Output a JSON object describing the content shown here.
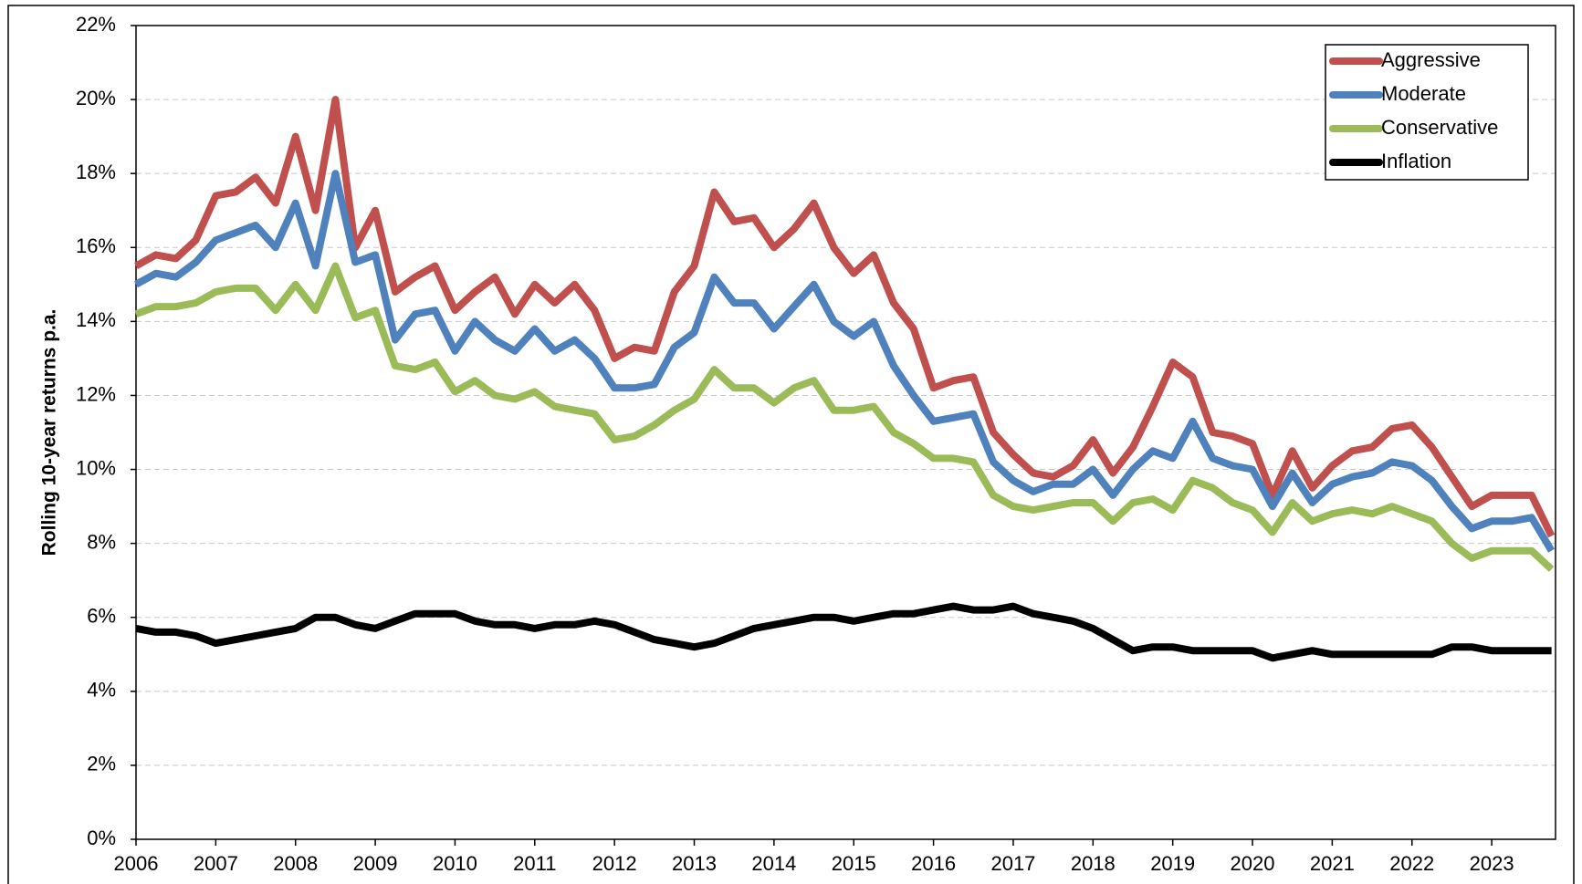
{
  "chart_data": {
    "type": "line",
    "y_label": "Rolling 10-year returns p.a.",
    "x": [
      2006,
      2006.25,
      2006.5,
      2006.75,
      2007,
      2007.25,
      2007.5,
      2007.75,
      2008,
      2008.25,
      2008.5,
      2008.75,
      2009,
      2009.25,
      2009.5,
      2009.75,
      2010,
      2010.25,
      2010.5,
      2010.75,
      2011,
      2011.25,
      2011.5,
      2011.75,
      2012,
      2012.25,
      2012.5,
      2012.75,
      2013,
      2013.25,
      2013.5,
      2013.75,
      2014,
      2014.25,
      2014.5,
      2014.75,
      2015,
      2015.25,
      2015.5,
      2015.75,
      2016,
      2016.25,
      2016.5,
      2016.75,
      2017,
      2017.25,
      2017.5,
      2017.75,
      2018,
      2018.25,
      2018.5,
      2018.75,
      2019,
      2019.25,
      2019.5,
      2019.75,
      2020,
      2020.25,
      2020.5,
      2020.75,
      2021,
      2021.25,
      2021.5,
      2021.75,
      2022,
      2022.25,
      2022.5,
      2022.75,
      2023,
      2023.25,
      2023.5,
      2023.75
    ],
    "series": [
      {
        "name": "Aggressive",
        "color": "#c0504d",
        "values": [
          15.5,
          15.8,
          15.7,
          16.2,
          17.4,
          17.5,
          17.9,
          17.2,
          19.0,
          17.0,
          20.0,
          16.0,
          17.0,
          14.8,
          15.2,
          15.5,
          14.3,
          14.8,
          15.2,
          14.2,
          15.0,
          14.5,
          15.0,
          14.3,
          13.0,
          13.3,
          13.2,
          14.8,
          15.5,
          17.5,
          16.7,
          16.8,
          16.0,
          16.5,
          17.2,
          16.0,
          15.3,
          15.8,
          14.5,
          13.8,
          12.2,
          12.4,
          12.5,
          11.0,
          10.4,
          9.9,
          9.8,
          10.1,
          10.8,
          9.9,
          10.6,
          11.7,
          12.9,
          12.5,
          11.0,
          10.9,
          10.7,
          9.3,
          10.5,
          9.5,
          10.1,
          10.5,
          10.6,
          11.1,
          11.2,
          10.6,
          9.8,
          9.0,
          9.3,
          9.3,
          9.3,
          8.2
        ]
      },
      {
        "name": "Moderate",
        "color": "#4f81bd",
        "values": [
          15.0,
          15.3,
          15.2,
          15.6,
          16.2,
          16.4,
          16.6,
          16.0,
          17.2,
          15.5,
          18.0,
          15.6,
          15.8,
          13.5,
          14.2,
          14.3,
          13.2,
          14.0,
          13.5,
          13.2,
          13.8,
          13.2,
          13.5,
          13.0,
          12.2,
          12.2,
          12.3,
          13.3,
          13.7,
          15.2,
          14.5,
          14.5,
          13.8,
          14.4,
          15.0,
          14.0,
          13.6,
          14.0,
          12.8,
          12.0,
          11.3,
          11.4,
          11.5,
          10.2,
          9.7,
          9.4,
          9.6,
          9.6,
          10.0,
          9.3,
          10.0,
          10.5,
          10.3,
          11.3,
          10.3,
          10.1,
          10.0,
          9.0,
          9.9,
          9.1,
          9.6,
          9.8,
          9.9,
          10.2,
          10.1,
          9.7,
          9.0,
          8.4,
          8.6,
          8.6,
          8.7,
          7.8
        ]
      },
      {
        "name": "Conservative",
        "color": "#9bbb59",
        "values": [
          14.2,
          14.4,
          14.4,
          14.5,
          14.8,
          14.9,
          14.9,
          14.3,
          15.0,
          14.3,
          15.5,
          14.1,
          14.3,
          12.8,
          12.7,
          12.9,
          12.1,
          12.4,
          12.0,
          11.9,
          12.1,
          11.7,
          11.6,
          11.5,
          10.8,
          10.9,
          11.2,
          11.6,
          11.9,
          12.7,
          12.2,
          12.2,
          11.8,
          12.2,
          12.4,
          11.6,
          11.6,
          11.7,
          11.0,
          10.7,
          10.3,
          10.3,
          10.2,
          9.3,
          9.0,
          8.9,
          9.0,
          9.1,
          9.1,
          8.6,
          9.1,
          9.2,
          8.9,
          9.7,
          9.5,
          9.1,
          8.9,
          8.3,
          9.1,
          8.6,
          8.8,
          8.9,
          8.8,
          9.0,
          8.8,
          8.6,
          8.0,
          7.6,
          7.8,
          7.8,
          7.8,
          7.3
        ]
      },
      {
        "name": "Inflation",
        "color": "#000000",
        "values": [
          5.7,
          5.6,
          5.6,
          5.5,
          5.3,
          5.4,
          5.5,
          5.6,
          5.7,
          6.0,
          6.0,
          5.8,
          5.7,
          5.9,
          6.1,
          6.1,
          6.1,
          5.9,
          5.8,
          5.8,
          5.7,
          5.8,
          5.8,
          5.9,
          5.8,
          5.6,
          5.4,
          5.3,
          5.2,
          5.3,
          5.5,
          5.7,
          5.8,
          5.9,
          6.0,
          6.0,
          5.9,
          6.0,
          6.1,
          6.1,
          6.2,
          6.3,
          6.2,
          6.2,
          6.3,
          6.1,
          6.0,
          5.9,
          5.7,
          5.4,
          5.1,
          5.2,
          5.2,
          5.1,
          5.1,
          5.1,
          5.1,
          4.9,
          5.0,
          5.1,
          5.0,
          5.0,
          5.0,
          5.0,
          5.0,
          5.0,
          5.2,
          5.2,
          5.1,
          5.1,
          5.1,
          5.1
        ]
      }
    ],
    "xlim": [
      2006,
      2023.8
    ],
    "xticks": [
      2006,
      2007,
      2008,
      2009,
      2010,
      2011,
      2012,
      2013,
      2014,
      2015,
      2016,
      2017,
      2018,
      2019,
      2020,
      2021,
      2022,
      2023
    ],
    "ylim": [
      0,
      22
    ],
    "yticks": [
      {
        "value": 0,
        "label": "0%"
      },
      {
        "value": 2,
        "label": "2%"
      },
      {
        "value": 4,
        "label": "4%"
      },
      {
        "value": 6,
        "label": "6%"
      },
      {
        "value": 8,
        "label": "8%"
      },
      {
        "value": 10,
        "label": "10%"
      },
      {
        "value": 12,
        "label": "12%"
      },
      {
        "value": 14,
        "label": "14%"
      },
      {
        "value": 16,
        "label": "16%"
      },
      {
        "value": 18,
        "label": "18%"
      },
      {
        "value": 20,
        "label": "20%"
      },
      {
        "value": 22,
        "label": "22%"
      }
    ],
    "grid": true,
    "legend": "top-right"
  }
}
